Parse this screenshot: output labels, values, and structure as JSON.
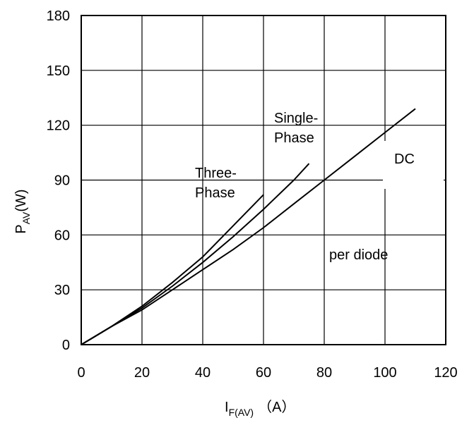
{
  "chart_data": {
    "type": "line",
    "title": "",
    "xlabel": {
      "main": "I",
      "sub": "F(AV)",
      "unit": "（A）"
    },
    "ylabel": {
      "main": "P",
      "sub": "AV",
      "unit": "(W)"
    },
    "xlim": [
      0,
      120
    ],
    "ylim": [
      0,
      180
    ],
    "x_ticks": [
      "0",
      "20",
      "40",
      "60",
      "80",
      "100",
      "120"
    ],
    "y_ticks": [
      "0",
      "30",
      "60",
      "90",
      "120",
      "150",
      "180"
    ],
    "grid": true,
    "series": [
      {
        "name": "Three-Phase",
        "x": [
          0,
          10,
          20,
          30,
          40,
          50,
          60
        ],
        "y": [
          0,
          10,
          21,
          34,
          48,
          65,
          82
        ]
      },
      {
        "name": "Single-Phase",
        "x": [
          0,
          10,
          20,
          30,
          40,
          50,
          60,
          70,
          75
        ],
        "y": [
          0,
          10,
          20,
          32,
          45,
          59,
          74,
          90,
          99
        ]
      },
      {
        "name": "DC",
        "x": [
          0,
          10,
          20,
          30,
          40,
          50,
          60,
          70,
          80,
          90,
          100,
          110
        ],
        "y": [
          0,
          10,
          19,
          30,
          41,
          52,
          64,
          77,
          90,
          103,
          116,
          129
        ]
      }
    ],
    "annotations": {
      "three_phase": [
        "Three-",
        "Phase"
      ],
      "single_phase": [
        "Single-",
        "Phase"
      ],
      "dc": "DC",
      "note": "per diode"
    }
  }
}
